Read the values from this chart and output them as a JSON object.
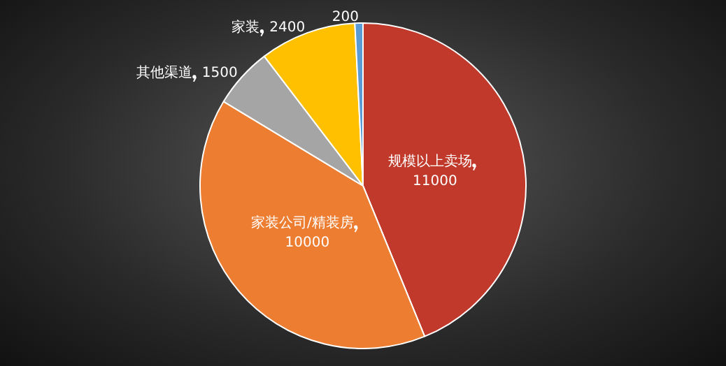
{
  "chart_data": {
    "type": "pie",
    "categories": [
      "规模以上卖场",
      "家装公司/精装房",
      "其他渠道",
      "家装",
      null
    ],
    "values": [
      11000,
      10000,
      1500,
      2400,
      200
    ],
    "colors": [
      "#c0392b",
      "#ed7d31",
      "#a5a5a5",
      "#ffc000",
      "#5b9bd5"
    ],
    "data_labels": true
  }
}
